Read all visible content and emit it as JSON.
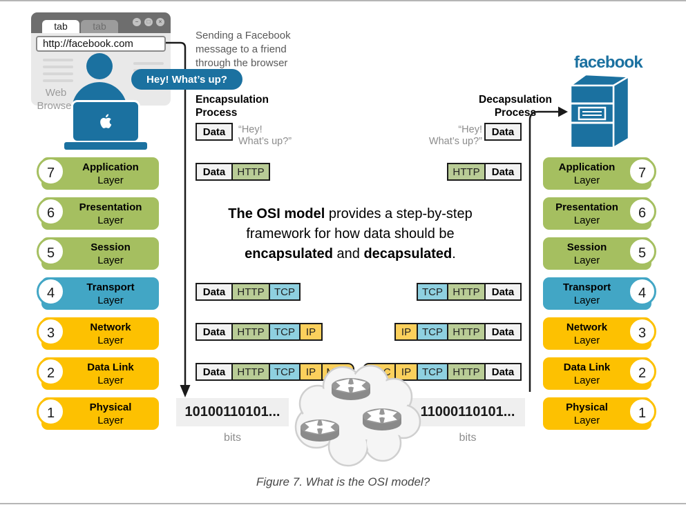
{
  "page": {
    "caption": "Figure 7. What is the OSI model?"
  },
  "browser": {
    "tab_active": "tab",
    "tab_inactive": "tab",
    "window_buttons": {
      "minimize": "−",
      "maximize": "□",
      "close": "×"
    },
    "url": "http://facebook.com",
    "label": "Web Browser",
    "speech_bubble": "Hey! What’s up?"
  },
  "scenario_text": "Sending a Facebook message to a friend through the browser",
  "center_text": {
    "p1": "The OSI model",
    "p2": " provides a step-by-step framework for how data should be ",
    "p3": "encapsulated",
    "p4": " and ",
    "p5": "decapsulated",
    "p6": "."
  },
  "encapsulation": {
    "title": "Encapsulation Process",
    "quote_line1": "“Hey!",
    "quote_line2": "What’s up?”",
    "bits": "10100110101...",
    "bits_label": "bits"
  },
  "decapsulation": {
    "title": "Decapsulation Process",
    "quote_line1": "“Hey!",
    "quote_line2": "What’s up?”",
    "bits": "11000110101...",
    "bits_label": "bits"
  },
  "packets": {
    "labels": {
      "data": "Data",
      "http": "HTTP",
      "tcp": "TCP",
      "ip": "IP",
      "mac": "MAC"
    },
    "encap_rows": [
      [
        "data"
      ],
      [
        "data",
        "http"
      ],
      [
        "data",
        "http",
        "tcp"
      ],
      [
        "data",
        "http",
        "tcp",
        "ip"
      ],
      [
        "data",
        "http",
        "tcp",
        "ip",
        "mac"
      ]
    ],
    "decap_rows": [
      [
        "data"
      ],
      [
        "http",
        "data"
      ],
      [
        "tcp",
        "http",
        "data"
      ],
      [
        "ip",
        "tcp",
        "http",
        "data"
      ],
      [
        "mac",
        "ip",
        "tcp",
        "http",
        "data"
      ]
    ]
  },
  "layers": [
    {
      "num": "7",
      "name": "Application",
      "sub": "Layer",
      "color": "green"
    },
    {
      "num": "6",
      "name": "Presentation",
      "sub": "Layer",
      "color": "green"
    },
    {
      "num": "5",
      "name": "Session",
      "sub": "Layer",
      "color": "green"
    },
    {
      "num": "4",
      "name": "Transport",
      "sub": "Layer",
      "color": "blue"
    },
    {
      "num": "3",
      "name": "Network",
      "sub": "Layer",
      "color": "yellow"
    },
    {
      "num": "2",
      "name": "Data Link",
      "sub": "Layer",
      "color": "yellow"
    },
    {
      "num": "1",
      "name": "Physical",
      "sub": "Layer",
      "color": "yellow"
    }
  ],
  "facebook": {
    "logo": "facebook"
  },
  "colors": {
    "layer_green": "#a5bf60",
    "layer_blue": "#42a6c5",
    "layer_yellow": "#fdc101",
    "brand_blue": "#1b71a0",
    "cell_http": "#b9cc96",
    "cell_tcp": "#8ed0e0",
    "cell_ip_mac": "#fbd05c",
    "cell_data": "#f2f2f2"
  }
}
